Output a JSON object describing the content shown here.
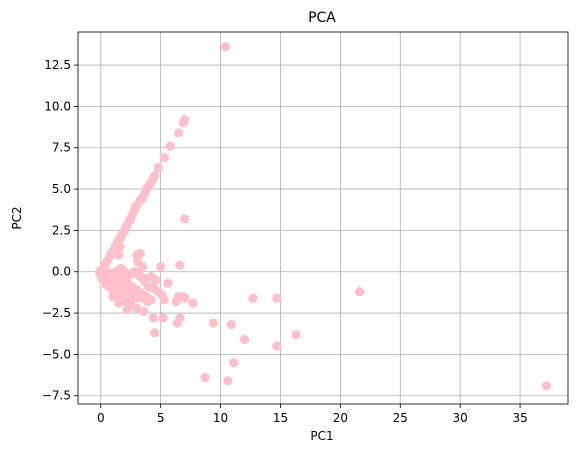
{
  "chart_data": {
    "type": "scatter",
    "title": "PCA",
    "xlabel": "PC1",
    "ylabel": "PC2",
    "xlim": [
      -1.9,
      39.0
    ],
    "ylim": [
      -8.0,
      14.5
    ],
    "xticks": [
      0,
      5,
      10,
      15,
      20,
      25,
      30,
      35
    ],
    "xtick_labels": [
      "0",
      "5",
      "10",
      "15",
      "20",
      "25",
      "30",
      "35"
    ],
    "yticks": [
      -7.5,
      -5.0,
      -2.5,
      0.0,
      2.5,
      5.0,
      7.5,
      10.0,
      12.5
    ],
    "ytick_labels": [
      "−7.5",
      "−5.0",
      "−2.5",
      "0.0",
      "2.5",
      "5.0",
      "7.5",
      "10.0",
      "12.5"
    ],
    "grid": true,
    "marker_color": "#ffc0cb",
    "points": [
      [
        10.4,
        13.6
      ],
      [
        7.0,
        9.2
      ],
      [
        6.9,
        9.0
      ],
      [
        6.5,
        8.4
      ],
      [
        5.8,
        7.6
      ],
      [
        5.3,
        6.9
      ],
      [
        4.8,
        6.3
      ],
      [
        4.5,
        5.8
      ],
      [
        4.3,
        5.5
      ],
      [
        4.1,
        5.3
      ],
      [
        3.9,
        5.1
      ],
      [
        3.7,
        4.8
      ],
      [
        3.5,
        4.5
      ],
      [
        3.3,
        4.3
      ],
      [
        3.0,
        4.0
      ],
      [
        2.8,
        3.7
      ],
      [
        2.6,
        3.4
      ],
      [
        2.4,
        3.1
      ],
      [
        2.2,
        2.8
      ],
      [
        2.0,
        2.5
      ],
      [
        1.8,
        2.3
      ],
      [
        1.6,
        2.0
      ],
      [
        1.4,
        1.8
      ],
      [
        1.2,
        1.5
      ],
      [
        1.0,
        1.2
      ],
      [
        0.8,
        1.0
      ],
      [
        0.6,
        0.7
      ],
      [
        0.4,
        0.5
      ],
      [
        0.2,
        0.2
      ],
      [
        2.1,
        2.7
      ],
      [
        1.7,
        2.1
      ],
      [
        1.3,
        1.6
      ],
      [
        0.9,
        1.1
      ],
      [
        0.5,
        0.6
      ],
      [
        2.5,
        3.2
      ],
      [
        2.9,
        3.9
      ],
      [
        3.4,
        4.4
      ],
      [
        3.8,
        5.0
      ],
      [
        -0.1,
        0.0
      ],
      [
        0.0,
        -0.2
      ],
      [
        0.1,
        -0.4
      ],
      [
        0.3,
        -0.6
      ],
      [
        0.5,
        -0.8
      ],
      [
        0.7,
        -0.9
      ],
      [
        1.0,
        -1.1
      ],
      [
        1.2,
        -1.3
      ],
      [
        1.5,
        -1.5
      ],
      [
        1.8,
        -1.7
      ],
      [
        2.1,
        -1.8
      ],
      [
        2.4,
        -1.9
      ],
      [
        0.4,
        0.1
      ],
      [
        0.8,
        -0.1
      ],
      [
        1.3,
        -0.3
      ],
      [
        1.7,
        -0.5
      ],
      [
        2.2,
        -0.7
      ],
      [
        2.6,
        -0.9
      ],
      [
        3.0,
        -1.1
      ],
      [
        3.4,
        -1.3
      ],
      [
        3.8,
        -1.5
      ],
      [
        4.2,
        -1.7
      ],
      [
        0.6,
        -0.4
      ],
      [
        1.1,
        -0.6
      ],
      [
        1.6,
        -0.9
      ],
      [
        2.0,
        -1.2
      ],
      [
        2.5,
        -1.4
      ],
      [
        2.9,
        -1.6
      ],
      [
        1.6,
        1.5
      ],
      [
        1.5,
        1.0
      ],
      [
        1.7,
        0.2
      ],
      [
        1.3,
        0.0
      ],
      [
        2.0,
        0.0
      ],
      [
        2.4,
        -0.2
      ],
      [
        2.8,
        0.0
      ],
      [
        3.2,
        0.0
      ],
      [
        1.9,
        -0.3
      ],
      [
        1.4,
        -0.9
      ],
      [
        1.9,
        -1.0
      ],
      [
        2.3,
        -1.1
      ],
      [
        2.7,
        -1.3
      ],
      [
        3.1,
        -1.5
      ],
      [
        3.5,
        -1.6
      ],
      [
        3.9,
        -1.8
      ],
      [
        3.0,
        1.0
      ],
      [
        3.3,
        1.1
      ],
      [
        3.1,
        0.6
      ],
      [
        2.7,
        -0.1
      ],
      [
        3.3,
        -0.3
      ],
      [
        3.7,
        -0.4
      ],
      [
        4.2,
        -0.3
      ],
      [
        4.6,
        -0.5
      ],
      [
        4.0,
        -0.9
      ],
      [
        4.4,
        -1.0
      ],
      [
        4.8,
        -1.2
      ],
      [
        5.1,
        -1.4
      ],
      [
        5.3,
        -1.7
      ],
      [
        5.6,
        -0.7
      ],
      [
        5.0,
        0.3
      ],
      [
        6.6,
        0.4
      ],
      [
        1.0,
        -1.5
      ],
      [
        1.5,
        -1.9
      ],
      [
        2.2,
        -2.3
      ],
      [
        4.4,
        -2.8
      ],
      [
        5.2,
        -2.8
      ],
      [
        6.4,
        -3.1
      ],
      [
        4.5,
        -3.7
      ],
      [
        3.5,
        0.3
      ],
      [
        3.7,
        -0.6
      ],
      [
        2.5,
        -2.0
      ],
      [
        3.0,
        -2.2
      ],
      [
        3.6,
        -2.4
      ],
      [
        6.3,
        -1.8
      ],
      [
        6.9,
        -1.5
      ],
      [
        6.5,
        -1.5
      ],
      [
        7.0,
        -1.6
      ],
      [
        7.7,
        -1.9
      ],
      [
        6.6,
        -2.8
      ],
      [
        7.0,
        3.2
      ],
      [
        9.4,
        -3.1
      ],
      [
        10.9,
        -3.2
      ],
      [
        12.7,
        -1.6
      ],
      [
        14.7,
        -1.6
      ],
      [
        12.0,
        -4.1
      ],
      [
        14.7,
        -4.5
      ],
      [
        16.3,
        -3.8
      ],
      [
        21.6,
        -1.2
      ],
      [
        11.1,
        -5.5
      ],
      [
        8.7,
        -6.4
      ],
      [
        10.6,
        -6.6
      ],
      [
        37.2,
        -6.9
      ]
    ]
  }
}
